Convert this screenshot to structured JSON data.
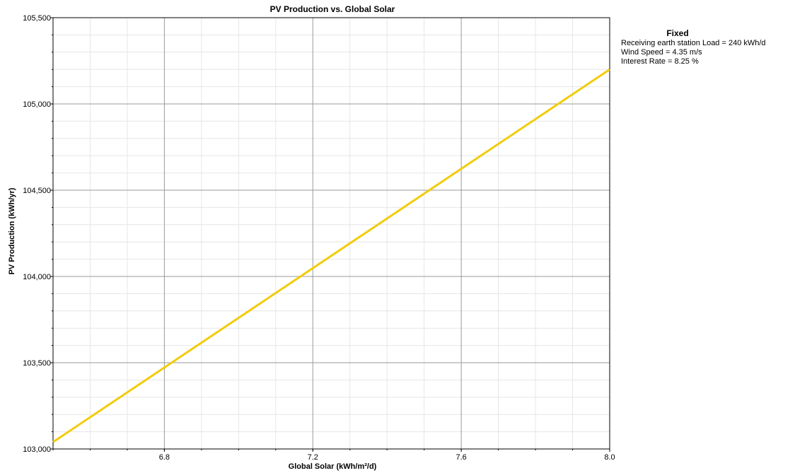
{
  "chart_data": {
    "type": "line",
    "title": "PV Production vs. Global Solar",
    "xlabel": "Global Solar (kWh/m²/d)",
    "ylabel": "PV Production (kWh/yr)",
    "xlim": [
      6.5,
      8.0
    ],
    "ylim": [
      103000,
      105500
    ],
    "x_ticks": [
      6.8,
      7.2,
      7.6,
      8.0
    ],
    "x_tick_labels": [
      "6.8",
      "7.2",
      "7.6",
      "8.0"
    ],
    "y_ticks": [
      103000,
      103500,
      104000,
      104500,
      105000,
      105500
    ],
    "y_tick_labels": [
      "103,000",
      "103,500",
      "104,000",
      "104,500",
      "105,000",
      "105,500"
    ],
    "grid": true,
    "series": [
      {
        "x": [
          6.5,
          8.0
        ],
        "values": [
          103040,
          105200
        ],
        "color": "#f2cc0c"
      }
    ]
  },
  "legend": {
    "title": "Fixed",
    "lines": [
      "Receiving earth station Load  = 240 kWh/d",
      "Wind Speed = 4.35 m/s",
      "Interest Rate = 8.25 %"
    ]
  }
}
